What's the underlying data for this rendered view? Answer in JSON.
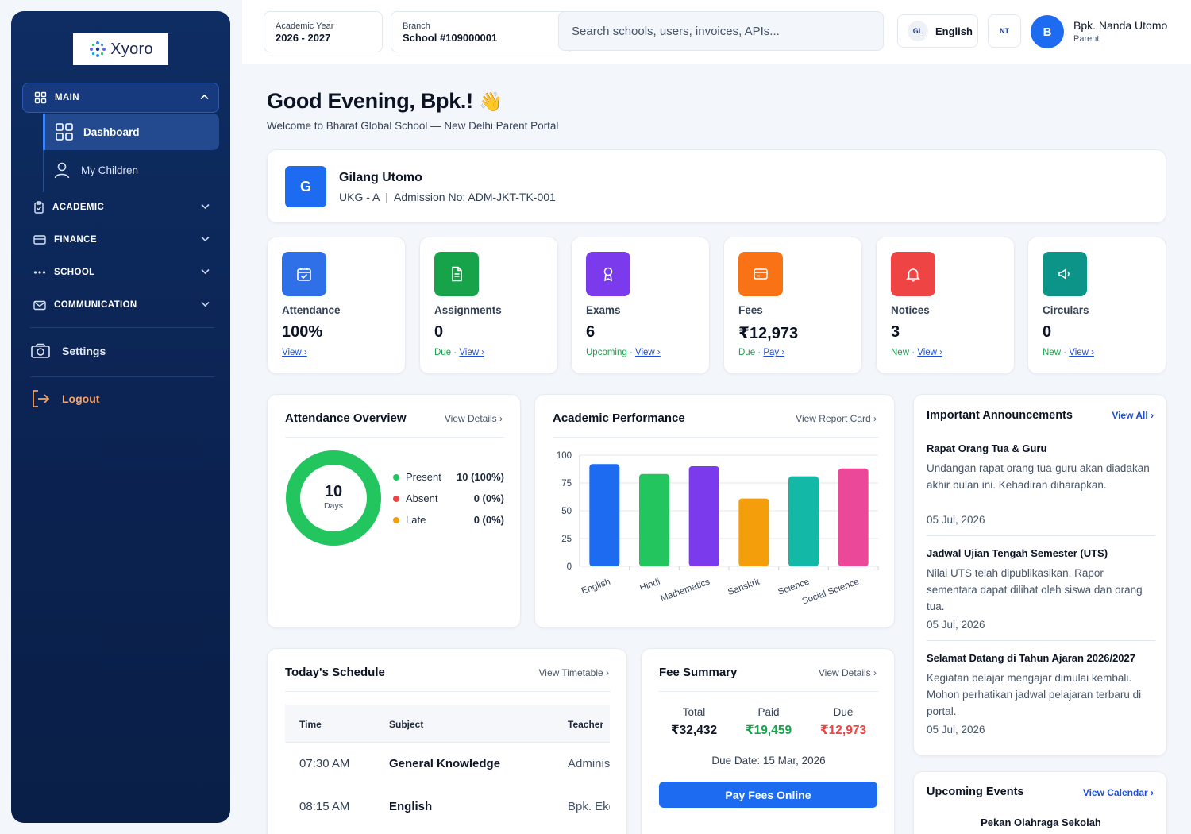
{
  "brand": {
    "name": "Xyoro"
  },
  "sidebar": {
    "main_label": "MAIN",
    "items": [
      {
        "label": "Dashboard"
      },
      {
        "label": "My Children"
      }
    ],
    "groups": [
      {
        "label": "ACADEMIC"
      },
      {
        "label": "FINANCE"
      },
      {
        "label": "SCHOOL"
      },
      {
        "label": "COMMUNICATION"
      }
    ],
    "settings_label": "Settings",
    "logout_label": "Logout"
  },
  "header": {
    "academic_year_label": "Academic Year",
    "academic_year_value": "2026 - 2027",
    "branch_label": "Branch",
    "branch_value": "School #109000001",
    "search_placeholder": "Search schools, users, invoices, APIs...",
    "lang_badge": "GL",
    "lang_label": "English",
    "nt_badge": "NT",
    "avatar_letter": "B",
    "user_name": "Bpk. Nanda Utomo",
    "user_role": "Parent"
  },
  "greeting": {
    "title": "Good Evening, Bpk.!",
    "emoji": "👋",
    "subtitle": "Welcome to Bharat Global School — New Delhi Parent Portal"
  },
  "child": {
    "avatar_letter": "G",
    "name": "Gilang Utomo",
    "meta": "UKG - A  |  Admission No: ADM-JKT-TK-001"
  },
  "stats": [
    {
      "label": "Attendance",
      "value": "100%",
      "prefix": "",
      "link": "View ›",
      "color": "#2f6fe8",
      "icon": "calendar-check-icon"
    },
    {
      "label": "Assignments",
      "value": "0",
      "prefix": "Due · ",
      "link": "View ›",
      "color": "#16a34a",
      "icon": "document-icon"
    },
    {
      "label": "Exams",
      "value": "6",
      "prefix": "Upcoming · ",
      "link": "View ›",
      "color": "#7c3aed",
      "icon": "award-icon"
    },
    {
      "label": "Fees",
      "value": "₹12,973",
      "prefix": "Due · ",
      "link": "Pay ›",
      "color": "#f97316",
      "icon": "credit-card-icon"
    },
    {
      "label": "Notices",
      "value": "3",
      "prefix": "New · ",
      "link": "View ›",
      "color": "#ef4444",
      "icon": "bell-icon"
    },
    {
      "label": "Circulars",
      "value": "0",
      "prefix": "New · ",
      "link": "View ›",
      "color": "#0d9488",
      "icon": "megaphone-icon"
    }
  ],
  "attendance": {
    "title": "Attendance Overview",
    "link": "View Details ›",
    "total": "10",
    "total_unit": "Days",
    "present_fraction": 1.0,
    "legend": [
      {
        "label": "Present",
        "value": "10 (100%)",
        "color": "#22c55e"
      },
      {
        "label": "Absent",
        "value": "0 (0%)",
        "color": "#ef4444"
      },
      {
        "label": "Late",
        "value": "0 (0%)",
        "color": "#f59e0b"
      }
    ]
  },
  "performance": {
    "title": "Academic Performance",
    "link": "View Report Card ›"
  },
  "chart_data": {
    "type": "bar",
    "categories": [
      "English",
      "Hindi",
      "Mathematics",
      "Sanskrit",
      "Science",
      "Social Science"
    ],
    "values": [
      92,
      83,
      90,
      61,
      81,
      88
    ],
    "colors": [
      "#1d6bf0",
      "#22c55e",
      "#7c3aed",
      "#f59e0b",
      "#14b8a6",
      "#ec4899"
    ],
    "ylim": [
      0,
      100
    ],
    "yticks": [
      "0",
      "25",
      "50",
      "75",
      "100"
    ],
    "grid": true,
    "title": "",
    "xlabel": "",
    "ylabel": ""
  },
  "announcements": {
    "title": "Important Announcements",
    "link": "View All ›",
    "items": [
      {
        "title": "Rapat Orang Tua & Guru",
        "text": "Undangan rapat orang tua-guru akan diadakan akhir bulan ini. Kehadiran diharapkan.",
        "date": "05 Jul, 2026"
      },
      {
        "title": "Jadwal Ujian Tengah Semester (UTS)",
        "text": "Nilai UTS telah dipublikasikan. Rapor sementara dapat dilihat oleh siswa dan orang tua.",
        "date": "05 Jul, 2026"
      },
      {
        "title": "Selamat Datang di Tahun Ajaran 2026/2027",
        "text": "Kegiatan belajar mengajar dimulai kembali. Mohon perhatikan jadwal pelajaran terbaru di portal.",
        "date": "05 Jul, 2026"
      }
    ]
  },
  "schedule": {
    "title": "Today's Schedule",
    "link": "View Timetable ›",
    "columns": [
      "Time",
      "Subject",
      "Teacher"
    ],
    "rows": [
      {
        "time": "07:30 AM",
        "subject": "General Knowledge",
        "teacher": "Adminis"
      },
      {
        "time": "08:15 AM",
        "subject": "English",
        "teacher": "Bpk. Eko"
      }
    ]
  },
  "fees": {
    "title": "Fee Summary",
    "link": "View Details ›",
    "total_label": "Total",
    "total_value": "₹32,432",
    "paid_label": "Paid",
    "paid_value": "₹19,459",
    "due_label": "Due",
    "due_value": "₹12,973",
    "due_date": "Due Date: 15 Mar, 2026",
    "pay_button": "Pay Fees Online"
  },
  "events": {
    "title": "Upcoming Events",
    "link": "View Calendar ›",
    "items": [
      {
        "title": "Pekan Olahraga Sekolah"
      }
    ]
  }
}
